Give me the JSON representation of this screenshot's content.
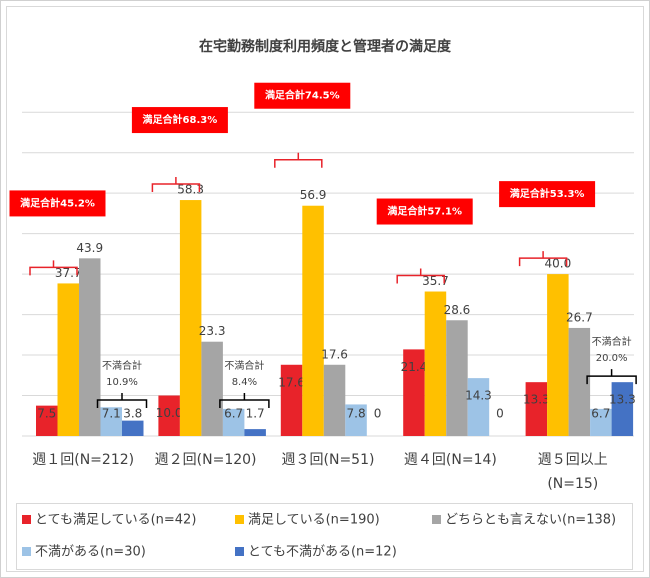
{
  "chart_data": {
    "type": "bar",
    "title": "在宅勤務制度利用頻度と管理者の満足度",
    "categories": [
      "週１回(N=212)",
      "週２回(N=120)",
      "週３回(N=51)",
      "週４回(N=14)",
      "週５回以上(N=15)"
    ],
    "series": [
      {
        "name": "とても満足している(n=42)",
        "color": "#e8232a",
        "values": [
          7.5,
          10.0,
          17.6,
          21.4,
          13.3
        ],
        "value_labels": [
          "7.5",
          "10.0",
          "17.6",
          "21.4",
          "13.3"
        ]
      },
      {
        "name": "満足している(n=190)",
        "color": "#ffc000",
        "values": [
          37.7,
          58.3,
          56.9,
          35.7,
          40.0
        ],
        "value_labels": [
          "37.7",
          "58.3",
          "56.9",
          "35.7",
          "40.0"
        ]
      },
      {
        "name": "どちらとも言えない(n=138)",
        "color": "#a5a5a5",
        "values": [
          43.9,
          23.3,
          17.6,
          28.6,
          26.7
        ]
      },
      {
        "name": "不満がある(n=30)",
        "color": "#9dc3e6",
        "values": [
          7.1,
          6.7,
          7.8,
          14.3,
          6.7
        ]
      },
      {
        "name": "とても不満がある(n=12)",
        "color": "#4472c4",
        "values": [
          3.8,
          1.7,
          0,
          0,
          13.3
        ]
      }
    ],
    "ylim": [
      0,
      85
    ],
    "yticks": [
      0,
      10,
      20,
      30,
      40,
      50,
      60,
      70,
      80
    ],
    "grid": true,
    "satisfied_totals": [
      "満足合計45.2%",
      "満足合計68.3%",
      "満足合計74.5%",
      "満足合計57.1%",
      "満足合計53.3%"
    ],
    "dissatisfied_totals": [
      [
        "不満合計",
        "10.9%"
      ],
      [
        "不満合計",
        "8.4%"
      ],
      null,
      null,
      [
        "不満合計",
        "20.0%"
      ]
    ]
  }
}
